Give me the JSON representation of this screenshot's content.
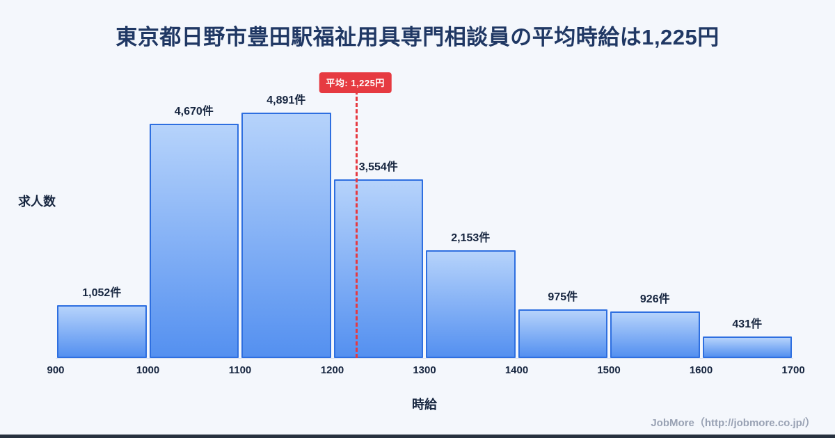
{
  "page": {
    "title": "東京都日野市豊田駅福祉用具専門相談員の平均時給は1,225円",
    "footer": "JobMore（http://jobmore.co.jp/）"
  },
  "chart_data": {
    "type": "bar",
    "subtype": "histogram",
    "title": "東京都日野市豊田駅福祉用具専門相談員の平均時給は1,225円",
    "xlabel": "時給",
    "ylabel": "求人数",
    "bins": [
      900,
      1000,
      1100,
      1200,
      1300,
      1400,
      1500,
      1600,
      1700
    ],
    "categories": [
      "900-1000",
      "1000-1100",
      "1100-1200",
      "1200-1300",
      "1300-1400",
      "1400-1500",
      "1500-1600",
      "1600-1700"
    ],
    "values": [
      1052,
      4670,
      4891,
      3554,
      2153,
      975,
      926,
      431
    ],
    "value_labels": [
      "1,052件",
      "4,670件",
      "4,891件",
      "3,554件",
      "2,153件",
      "975件",
      "926件",
      "431件"
    ],
    "x_ticks": [
      "900",
      "1000",
      "1100",
      "1200",
      "1300",
      "1400",
      "1500",
      "1600",
      "1700"
    ],
    "x_range": [
      900,
      1700
    ],
    "average": {
      "value": 1225,
      "label": "平均: 1,225円"
    },
    "grid": false,
    "legend": false,
    "colors": {
      "background": "#f4f7fc",
      "title": "#203864",
      "text": "#16253f",
      "bar_top": "#b6d3fb",
      "bar_bottom": "#5490f0",
      "bar_border": "#2e6fe0",
      "average_line": "#e63a41"
    }
  }
}
